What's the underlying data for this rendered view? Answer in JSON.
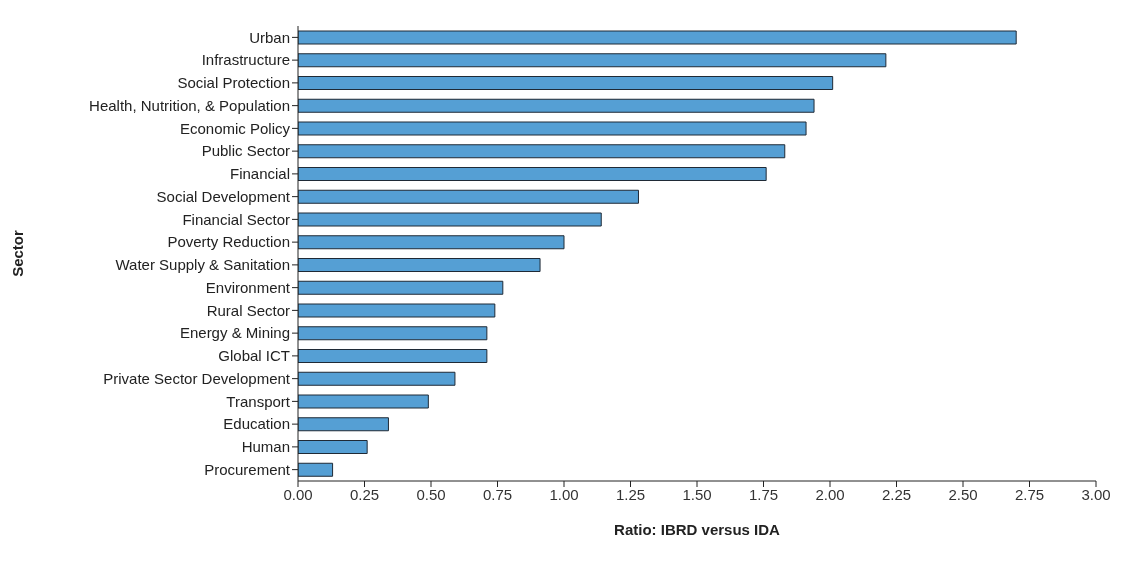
{
  "chart_data": {
    "type": "bar",
    "orientation": "horizontal",
    "xlabel": "Ratio: IBRD versus IDA",
    "ylabel": "Sector",
    "categories": [
      "Urban",
      "Infrastructure",
      "Social Protection",
      "Health, Nutrition, & Population",
      "Economic Policy",
      "Public Sector",
      "Financial",
      "Social Development",
      "Financial Sector",
      "Poverty Reduction",
      "Water Supply & Sanitation",
      "Environment",
      "Rural Sector",
      "Energy & Mining",
      "Global ICT",
      "Private Sector Development",
      "Transport",
      "Education",
      "Human",
      "Procurement"
    ],
    "values": [
      2.7,
      2.21,
      2.01,
      1.94,
      1.91,
      1.83,
      1.76,
      1.28,
      1.14,
      1.0,
      0.91,
      0.77,
      0.74,
      0.71,
      0.71,
      0.59,
      0.49,
      0.34,
      0.26,
      0.13
    ],
    "color": "#559fd4",
    "xlim": [
      0,
      3
    ],
    "xticks": [
      {
        "value": 0,
        "label": "0.00"
      },
      {
        "value": 0.25,
        "label": "0.25"
      },
      {
        "value": 0.5,
        "label": "0.50"
      },
      {
        "value": 0.75,
        "label": "0.75"
      },
      {
        "value": 1,
        "label": "1.00"
      },
      {
        "value": 1.25,
        "label": "1.25"
      },
      {
        "value": 1.5,
        "label": "1.50"
      },
      {
        "value": 1.75,
        "label": "1.75"
      },
      {
        "value": 2,
        "label": "2.00"
      },
      {
        "value": 2.25,
        "label": "2.25"
      },
      {
        "value": 2.5,
        "label": "2.50"
      },
      {
        "value": 2.75,
        "label": "2.75"
      },
      {
        "value": 3,
        "label": "3.00"
      }
    ],
    "grid": false,
    "legend": false
  }
}
